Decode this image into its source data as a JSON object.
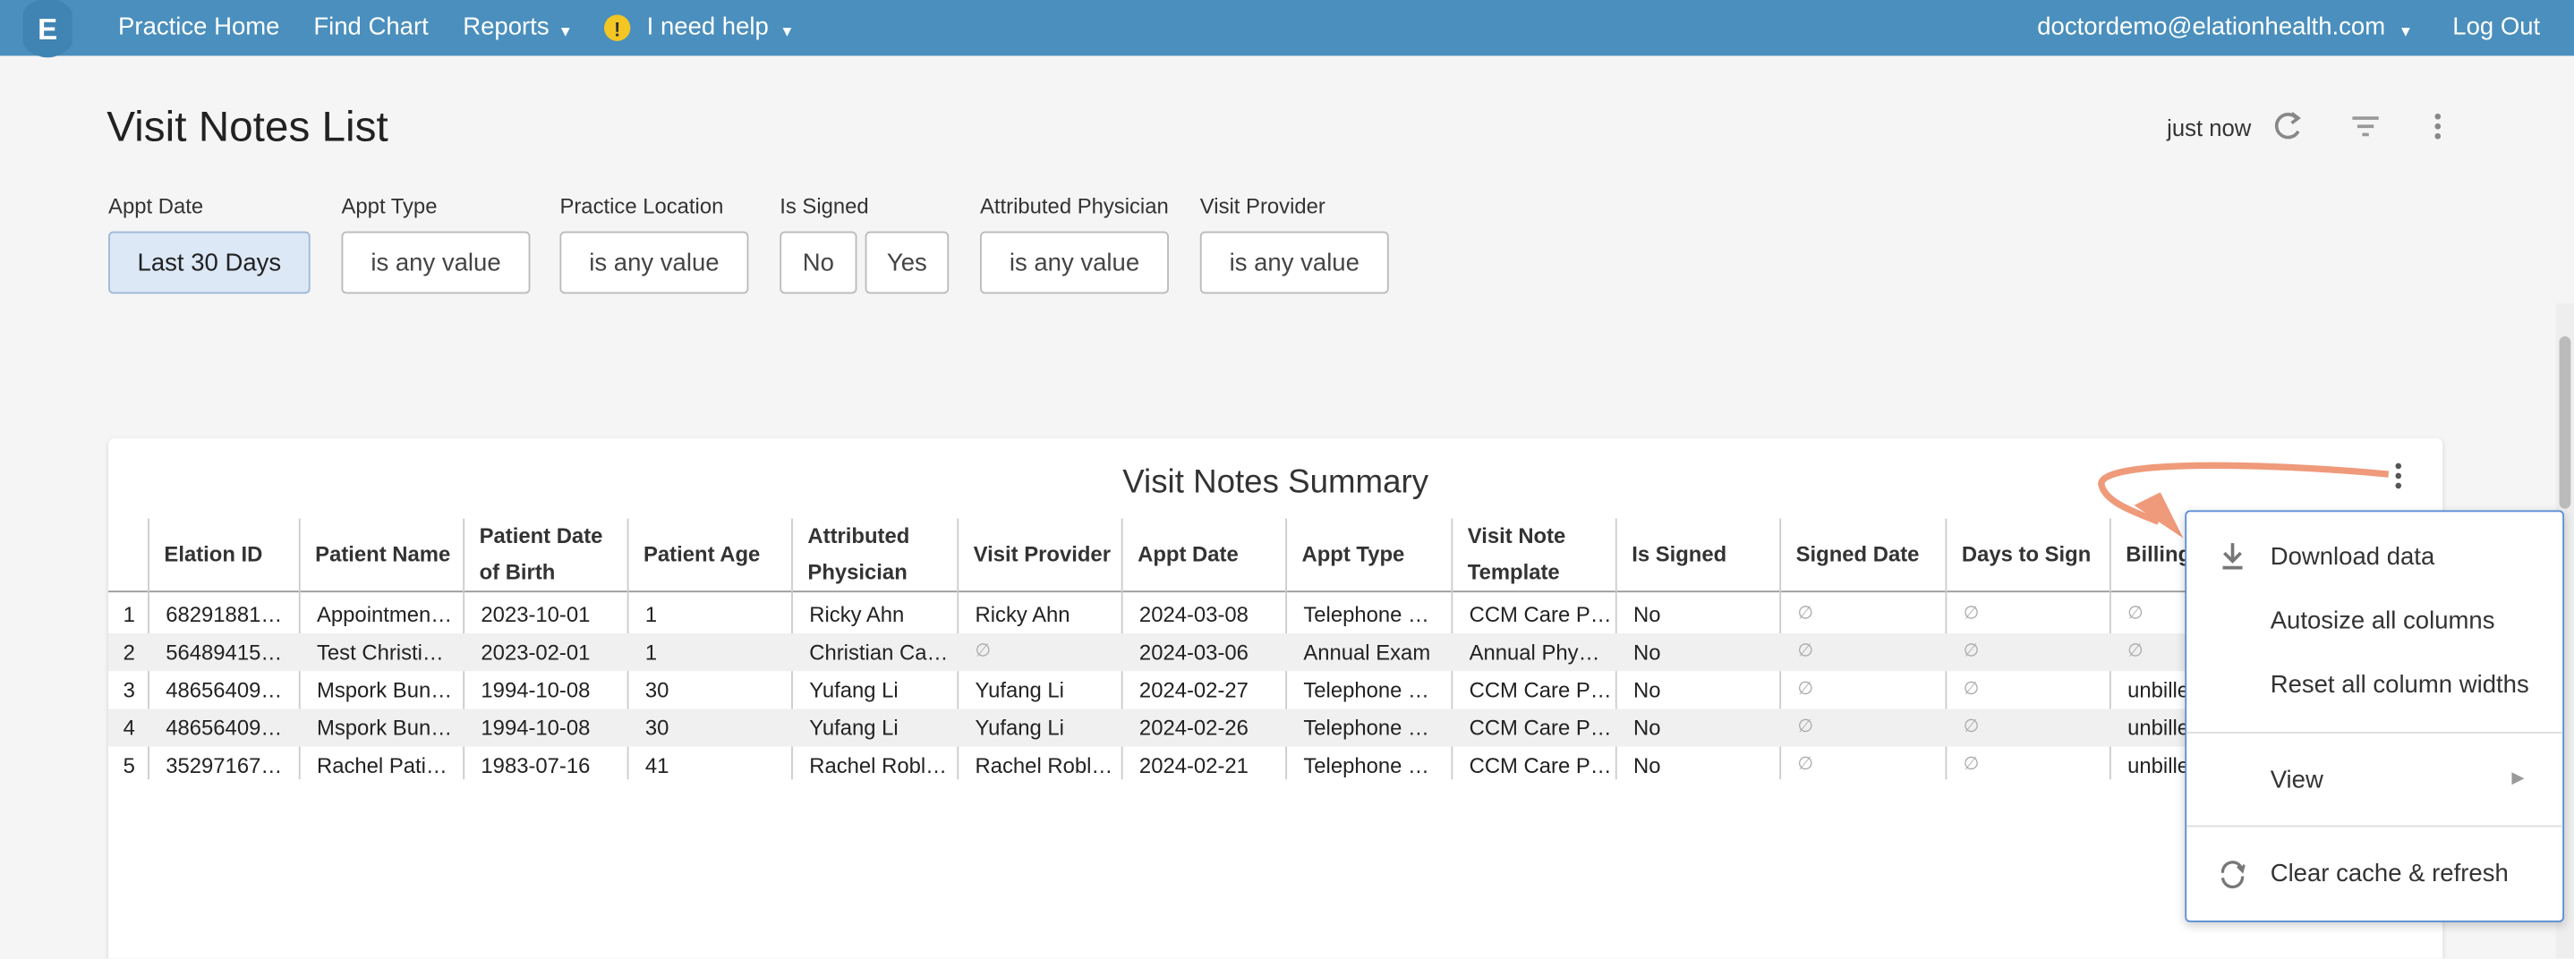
{
  "nav": {
    "items": [
      "Practice Home",
      "Find Chart",
      "Reports",
      "I need help"
    ],
    "user": "doctordemo@elationhealth.com",
    "logout": "Log Out"
  },
  "header": {
    "title": "Visit Notes List",
    "updated": "just now"
  },
  "filters": [
    {
      "label": "Appt Date",
      "values": [
        "Last 30 Days"
      ]
    },
    {
      "label": "Appt Type",
      "values": [
        "is any value"
      ]
    },
    {
      "label": "Practice Location",
      "values": [
        "is any value"
      ]
    },
    {
      "label": "Is Signed",
      "values": [
        "No",
        "Yes"
      ]
    },
    {
      "label": "Attributed Physician",
      "values": [
        "is any value"
      ]
    },
    {
      "label": "Visit Provider",
      "values": [
        "is any value"
      ]
    }
  ],
  "table": {
    "title": "Visit Notes Summary",
    "columns": [
      "Elation ID",
      "Patient Name",
      "Patient Date of Birth",
      "Patient Age",
      "Attributed Physician",
      "Visit Provider",
      "Appt Date",
      "Appt Type",
      "Visit Note Template",
      "Is Signed",
      "Signed Date",
      "Days to Sign",
      "Billing"
    ],
    "row_numbers": [
      1,
      2,
      3,
      4,
      5
    ],
    "rows": [
      [
        "68291881…",
        "Appointmen…",
        "2023-10-01",
        "1",
        "Ricky Ahn",
        "Ricky Ahn",
        "2024-03-08",
        "Telephone …",
        "CCM Care P…",
        "No",
        "∅",
        "∅",
        "∅"
      ],
      [
        "56489415…",
        "Test Christi…",
        "2023-02-01",
        "1",
        "Christian Ca…",
        "∅",
        "2024-03-06",
        "Annual Exam",
        "Annual Phy…",
        "No",
        "∅",
        "∅",
        "∅"
      ],
      [
        "48656409…",
        "Mspork Bun…",
        "1994-10-08",
        "30",
        "Yufang Li",
        "Yufang Li",
        "2024-02-27",
        "Telephone …",
        "CCM Care P…",
        "No",
        "∅",
        "∅",
        "unbilled"
      ],
      [
        "48656409…",
        "Mspork Bun…",
        "1994-10-08",
        "30",
        "Yufang Li",
        "Yufang Li",
        "2024-02-26",
        "Telephone …",
        "CCM Care P…",
        "No",
        "∅",
        "∅",
        "unbilled"
      ],
      [
        "35297167…",
        "Rachel Pati…",
        "1983-07-16",
        "41",
        "Rachel Robl…",
        "Rachel Robl…",
        "2024-02-21",
        "Telephone …",
        "CCM Care P…",
        "No",
        "∅",
        "∅",
        "unbilled"
      ]
    ]
  },
  "menu": {
    "items": [
      "Download data",
      "Autosize all columns",
      "Reset all column widths",
      "View",
      "Clear cache & refresh"
    ]
  }
}
